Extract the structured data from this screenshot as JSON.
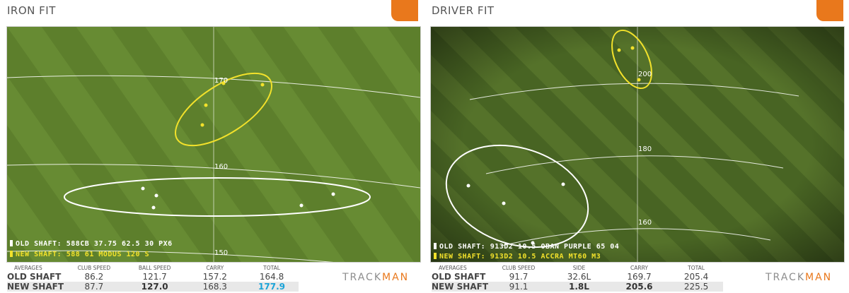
{
  "iron": {
    "title": "IRON FIT",
    "distances": [
      "170",
      "160",
      "150"
    ],
    "legend_old": "OLD SHAFT:  588CB 37.75 62.5 30 PX6",
    "legend_new": "NEW SHAFT:  588 61 MODUS 120 S",
    "table": {
      "headers": [
        "AVERAGES",
        "CLUB SPEED",
        "BALL SPEED",
        "CARRY",
        "TOTAL"
      ],
      "old": [
        "OLD SHAFT",
        "86.2",
        "121.7",
        "157.2",
        "164.8"
      ],
      "new": [
        "NEW SHAFT",
        "87.7",
        "127.0",
        "168.3",
        "177.9"
      ]
    }
  },
  "driver": {
    "title": "DRIVER FIT",
    "distances": [
      "200",
      "180",
      "160"
    ],
    "legend_old": "OLD SHAFT:  913D2 10.5 OBAN PURPLE 65 04",
    "legend_new": "NEW SHAFT:  913D2 10.5 ACCRA MT60 M3",
    "table": {
      "headers": [
        "AVERAGES",
        "CLUB SPEED",
        "SIDE",
        "CARRY",
        "TOTAL"
      ],
      "old": [
        "OLD SHAFT",
        "91.7",
        "32.6L",
        "169.7",
        "205.4"
      ],
      "new": [
        "NEW SHAFT",
        "91.1",
        "1.8L",
        "205.6",
        "225.5"
      ]
    }
  },
  "logo": {
    "track": "TRACK",
    "man": "MAN"
  },
  "colors": {
    "orange_tab": "#e9781c",
    "new_shaft": "#f2e12b",
    "old_shaft": "#ffffff",
    "highlight": "#1aa3d8",
    "grass": "#5e7f2f"
  }
}
